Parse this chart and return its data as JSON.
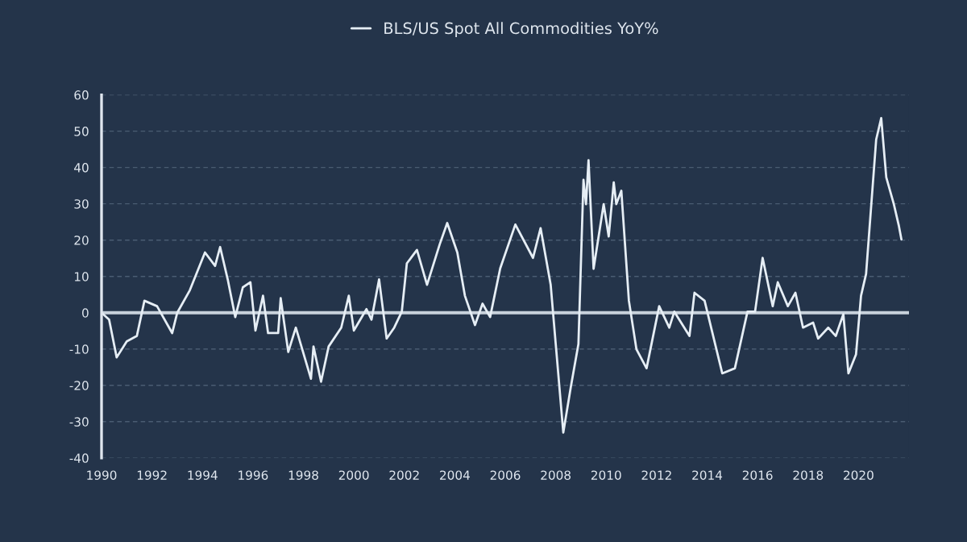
{
  "chart_data": {
    "type": "line",
    "legend": "top",
    "grid": "y",
    "xlim": [
      1990,
      2022
    ],
    "ylim": [
      -40,
      60
    ],
    "xticks": [
      1990,
      1992,
      1994,
      1996,
      1998,
      2000,
      2002,
      2004,
      2006,
      2008,
      2010,
      2012,
      2014,
      2016,
      2018,
      2020
    ],
    "yticks": [
      -40,
      -30,
      -20,
      -10,
      0,
      10,
      20,
      30,
      40,
      50,
      60
    ],
    "ref_lines": [
      {
        "axis": "y",
        "value": 0,
        "color": "#c8d2dc"
      }
    ],
    "series": [
      {
        "name": "BLS/US Spot All Commodities YoY%",
        "color": "#e6eef5",
        "x": [
          1990.0,
          1990.3,
          1990.6,
          1991.0,
          1991.4,
          1991.7,
          1992.2,
          1992.8,
          1993.0,
          1993.5,
          1994.1,
          1994.5,
          1994.7,
          1995.0,
          1995.3,
          1995.6,
          1995.9,
          1996.1,
          1996.4,
          1996.6,
          1997.0,
          1997.1,
          1997.4,
          1997.7,
          1998.3,
          1998.4,
          1998.7,
          1999.0,
          1999.5,
          1999.8,
          2000.0,
          2000.5,
          2000.7,
          2001.0,
          2001.3,
          2001.6,
          2001.9,
          2002.1,
          2002.5,
          2002.9,
          2003.4,
          2003.7,
          2004.1,
          2004.4,
          2004.8,
          2005.1,
          2005.4,
          2005.8,
          2006.4,
          2007.1,
          2007.4,
          2007.8,
          2008.0,
          2008.3,
          2008.6,
          2008.9,
          2009.1,
          2009.2,
          2009.3,
          2009.5,
          2009.9,
          2010.1,
          2010.3,
          2010.4,
          2010.6,
          2010.9,
          2011.2,
          2011.6,
          2012.1,
          2012.5,
          2012.7,
          2013.3,
          2013.5,
          2013.9,
          2014.6,
          2015.1,
          2015.6,
          2015.9,
          2016.2,
          2016.6,
          2016.8,
          2017.2,
          2017.5,
          2017.8,
          2018.2,
          2018.4,
          2018.8,
          2019.1,
          2019.4,
          2019.6,
          2019.9,
          2020.1,
          2020.3,
          2020.7,
          2020.9,
          2021.1,
          2021.4,
          2021.6,
          2021.7
        ],
        "values": [
          0,
          -1.9,
          -12.3,
          -7.9,
          -6.4,
          3.3,
          1.8,
          -5.6,
          0,
          6.2,
          16.6,
          12.9,
          18.1,
          9.2,
          -1.2,
          7,
          8.4,
          -4.9,
          4.7,
          -5.6,
          -5.6,
          4,
          -10.8,
          -4.1,
          -18.2,
          -9.3,
          -19,
          -9.3,
          -4.1,
          4.7,
          -4.9,
          1,
          -1.9,
          9.2,
          -7.1,
          -4.1,
          0.3,
          13.6,
          17.3,
          7.7,
          18.8,
          24.7,
          16.6,
          4.7,
          -3.4,
          2.5,
          -1.2,
          12.2,
          24.3,
          15.1,
          23.3,
          7.7,
          -8.6,
          -33,
          -20.4,
          -8.6,
          36.6,
          29.9,
          42,
          12.1,
          29.9,
          21,
          35.9,
          29.9,
          33.6,
          3.3,
          -10.1,
          -15.3,
          1.8,
          -4.1,
          0.3,
          -6.4,
          5.5,
          3.3,
          -16.7,
          -15.3,
          0.3,
          0.3,
          15.1,
          1.8,
          8.4,
          1.8,
          5.5,
          -4.1,
          -2.7,
          -7.1,
          -4.1,
          -6.4,
          -0.4,
          -16.7,
          -11.5,
          4.7,
          10.7,
          47.7,
          53.6,
          37.3,
          29.9,
          23.9,
          20.2
        ]
      }
    ]
  }
}
